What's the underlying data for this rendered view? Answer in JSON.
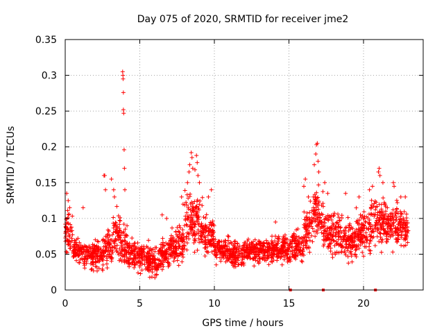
{
  "chart_data": {
    "type": "scatter",
    "title": "Day 075 of 2020, SRMTID for receiver jme2",
    "xlabel": "GPS time / hours",
    "ylabel": "SRMTID / TECUs",
    "xlim": [
      0,
      24
    ],
    "ylim": [
      0,
      0.35
    ],
    "x_ticks": [
      0,
      5,
      10,
      15,
      20
    ],
    "x_tick_labels": [
      "0",
      "5",
      "10",
      "15",
      "20"
    ],
    "y_ticks": [
      0,
      0.05,
      0.1,
      0.15,
      0.2,
      0.25,
      0.3,
      0.35
    ],
    "y_tick_labels": [
      "0",
      "0.05",
      "0.1",
      "0.15",
      "0.2",
      "0.25",
      "0.3",
      "0.35"
    ],
    "grid": true,
    "marker": "plus",
    "series": [
      {
        "name": "SRMTID",
        "color": "#ff0000",
        "envelope": [
          {
            "x_start": 0.0,
            "x_end": 0.5,
            "y_min": 0.04,
            "y_max": 0.12
          },
          {
            "x_start": 0.5,
            "x_end": 1.2,
            "y_min": 0.03,
            "y_max": 0.08
          },
          {
            "x_start": 1.2,
            "x_end": 2.0,
            "y_min": 0.02,
            "y_max": 0.075
          },
          {
            "x_start": 2.0,
            "x_end": 2.6,
            "y_min": 0.02,
            "y_max": 0.08
          },
          {
            "x_start": 2.6,
            "x_end": 3.2,
            "y_min": 0.025,
            "y_max": 0.09
          },
          {
            "x_start": 3.2,
            "x_end": 3.7,
            "y_min": 0.03,
            "y_max": 0.13
          },
          {
            "x_start": 3.7,
            "x_end": 4.2,
            "y_min": 0.02,
            "y_max": 0.1
          },
          {
            "x_start": 4.2,
            "x_end": 5.0,
            "y_min": 0.02,
            "y_max": 0.08
          },
          {
            "x_start": 5.0,
            "x_end": 5.6,
            "y_min": 0.015,
            "y_max": 0.075
          },
          {
            "x_start": 5.6,
            "x_end": 6.3,
            "y_min": 0.01,
            "y_max": 0.065
          },
          {
            "x_start": 6.3,
            "x_end": 7.0,
            "y_min": 0.02,
            "y_max": 0.08
          },
          {
            "x_start": 7.0,
            "x_end": 8.0,
            "y_min": 0.03,
            "y_max": 0.1
          },
          {
            "x_start": 8.0,
            "x_end": 9.2,
            "y_min": 0.04,
            "y_max": 0.15
          },
          {
            "x_start": 9.2,
            "x_end": 10.0,
            "y_min": 0.04,
            "y_max": 0.11
          },
          {
            "x_start": 10.0,
            "x_end": 11.0,
            "y_min": 0.03,
            "y_max": 0.08
          },
          {
            "x_start": 11.0,
            "x_end": 12.0,
            "y_min": 0.025,
            "y_max": 0.075
          },
          {
            "x_start": 12.0,
            "x_end": 13.0,
            "y_min": 0.03,
            "y_max": 0.08
          },
          {
            "x_start": 13.0,
            "x_end": 14.0,
            "y_min": 0.03,
            "y_max": 0.08
          },
          {
            "x_start": 14.0,
            "x_end": 15.2,
            "y_min": 0.03,
            "y_max": 0.085
          },
          {
            "x_start": 15.2,
            "x_end": 16.0,
            "y_min": 0.03,
            "y_max": 0.09
          },
          {
            "x_start": 16.0,
            "x_end": 16.6,
            "y_min": 0.04,
            "y_max": 0.13
          },
          {
            "x_start": 16.6,
            "x_end": 17.3,
            "y_min": 0.05,
            "y_max": 0.16
          },
          {
            "x_start": 17.3,
            "x_end": 18.5,
            "y_min": 0.04,
            "y_max": 0.12
          },
          {
            "x_start": 18.5,
            "x_end": 19.5,
            "y_min": 0.03,
            "y_max": 0.11
          },
          {
            "x_start": 19.5,
            "x_end": 20.5,
            "y_min": 0.04,
            "y_max": 0.12
          },
          {
            "x_start": 20.5,
            "x_end": 21.5,
            "y_min": 0.05,
            "y_max": 0.14
          },
          {
            "x_start": 21.5,
            "x_end": 22.3,
            "y_min": 0.05,
            "y_max": 0.13
          },
          {
            "x_start": 22.3,
            "x_end": 23.0,
            "y_min": 0.05,
            "y_max": 0.12
          }
        ],
        "peaks": [
          {
            "x": 0.1,
            "y": 0.135
          },
          {
            "x": 0.2,
            "y": 0.125
          },
          {
            "x": 0.3,
            "y": 0.115
          },
          {
            "x": 1.2,
            "y": 0.115
          },
          {
            "x": 2.6,
            "y": 0.16
          },
          {
            "x": 2.65,
            "y": 0.16
          },
          {
            "x": 2.7,
            "y": 0.14
          },
          {
            "x": 3.1,
            "y": 0.155
          },
          {
            "x": 3.25,
            "y": 0.14
          },
          {
            "x": 3.3,
            "y": 0.13
          },
          {
            "x": 3.85,
            "y": 0.305
          },
          {
            "x": 3.87,
            "y": 0.3
          },
          {
            "x": 3.88,
            "y": 0.295
          },
          {
            "x": 3.9,
            "y": 0.276
          },
          {
            "x": 3.9,
            "y": 0.252
          },
          {
            "x": 3.92,
            "y": 0.247
          },
          {
            "x": 3.95,
            "y": 0.196
          },
          {
            "x": 3.97,
            "y": 0.17
          },
          {
            "x": 4.0,
            "y": 0.14
          },
          {
            "x": 6.5,
            "y": 0.105
          },
          {
            "x": 6.8,
            "y": 0.1
          },
          {
            "x": 7.8,
            "y": 0.13
          },
          {
            "x": 7.9,
            "y": 0.12
          },
          {
            "x": 8.2,
            "y": 0.15
          },
          {
            "x": 8.3,
            "y": 0.165
          },
          {
            "x": 8.35,
            "y": 0.175
          },
          {
            "x": 8.45,
            "y": 0.192
          },
          {
            "x": 8.5,
            "y": 0.185
          },
          {
            "x": 8.55,
            "y": 0.17
          },
          {
            "x": 8.7,
            "y": 0.168
          },
          {
            "x": 8.8,
            "y": 0.188
          },
          {
            "x": 8.85,
            "y": 0.178
          },
          {
            "x": 8.9,
            "y": 0.16
          },
          {
            "x": 9.0,
            "y": 0.15
          },
          {
            "x": 9.6,
            "y": 0.13
          },
          {
            "x": 9.8,
            "y": 0.14
          },
          {
            "x": 14.1,
            "y": 0.095
          },
          {
            "x": 16.0,
            "y": 0.145
          },
          {
            "x": 16.1,
            "y": 0.155
          },
          {
            "x": 16.3,
            "y": 0.13
          },
          {
            "x": 16.7,
            "y": 0.175
          },
          {
            "x": 16.8,
            "y": 0.19
          },
          {
            "x": 16.85,
            "y": 0.203
          },
          {
            "x": 16.9,
            "y": 0.205
          },
          {
            "x": 16.95,
            "y": 0.18
          },
          {
            "x": 17.0,
            "y": 0.165
          },
          {
            "x": 17.4,
            "y": 0.15
          },
          {
            "x": 17.6,
            "y": 0.135
          },
          {
            "x": 18.8,
            "y": 0.135
          },
          {
            "x": 19.7,
            "y": 0.13
          },
          {
            "x": 20.4,
            "y": 0.14
          },
          {
            "x": 20.6,
            "y": 0.145
          },
          {
            "x": 21.0,
            "y": 0.165
          },
          {
            "x": 21.05,
            "y": 0.17
          },
          {
            "x": 21.1,
            "y": 0.16
          },
          {
            "x": 21.3,
            "y": 0.15
          },
          {
            "x": 22.0,
            "y": 0.15
          },
          {
            "x": 22.05,
            "y": 0.145
          },
          {
            "x": 22.5,
            "y": 0.13
          },
          {
            "x": 22.8,
            "y": 0.13
          }
        ],
        "zero_markers": [
          {
            "x": 15.1,
            "y": 0
          },
          {
            "x": 17.3,
            "y": 0
          },
          {
            "x": 20.8,
            "y": 0
          }
        ]
      }
    ]
  }
}
